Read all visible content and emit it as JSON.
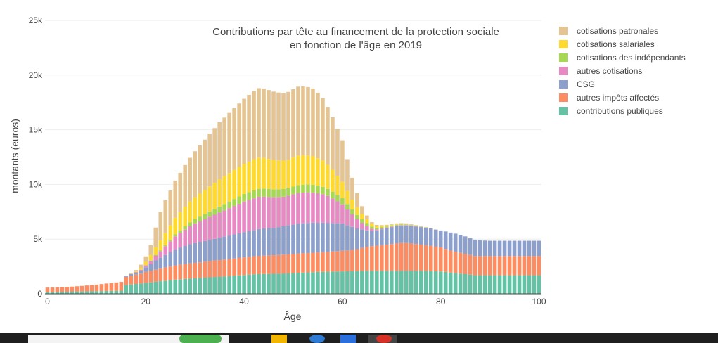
{
  "chart_data": {
    "type": "bar",
    "stacked": true,
    "title_lines": [
      "Contributions par tête au financement de la protection sociale",
      "en fonction de l'âge en 2019"
    ],
    "xlabel": "Âge",
    "ylabel": "montants (euros)",
    "xlim": [
      -0.5,
      100.5
    ],
    "ylim": [
      0,
      25000
    ],
    "x_ticks": [
      0,
      20,
      40,
      60,
      80,
      100
    ],
    "y_ticks": [
      0,
      5000,
      10000,
      15000,
      20000,
      25000
    ],
    "y_tick_labels": [
      "0",
      "5k",
      "10k",
      "15k",
      "20k",
      "25k"
    ],
    "grid": true,
    "legend_position": "top-right",
    "ages": [
      0,
      1,
      2,
      3,
      4,
      5,
      6,
      7,
      8,
      9,
      10,
      11,
      12,
      13,
      14,
      15,
      16,
      17,
      18,
      19,
      20,
      21,
      22,
      23,
      24,
      25,
      26,
      27,
      28,
      29,
      30,
      31,
      32,
      33,
      34,
      35,
      36,
      37,
      38,
      39,
      40,
      41,
      42,
      43,
      44,
      45,
      46,
      47,
      48,
      49,
      50,
      51,
      52,
      53,
      54,
      55,
      56,
      57,
      58,
      59,
      60,
      61,
      62,
      63,
      64,
      65,
      66,
      67,
      68,
      69,
      70,
      71,
      72,
      73,
      74,
      75,
      76,
      77,
      78,
      79,
      80,
      81,
      82,
      83,
      84,
      85,
      86,
      87,
      88,
      89,
      90,
      91,
      92,
      93,
      94,
      95,
      96,
      97,
      98,
      99,
      100
    ],
    "series": [
      {
        "name": "contributions publiques",
        "color": "#66c2a5",
        "values": [
          150,
          150,
          160,
          170,
          180,
          190,
          200,
          210,
          220,
          230,
          240,
          250,
          260,
          270,
          280,
          290,
          800,
          850,
          900,
          950,
          1000,
          1050,
          1100,
          1150,
          1200,
          1250,
          1300,
          1330,
          1360,
          1390,
          1420,
          1450,
          1480,
          1510,
          1540,
          1570,
          1600,
          1630,
          1660,
          1690,
          1720,
          1750,
          1780,
          1800,
          1810,
          1820,
          1830,
          1840,
          1860,
          1880,
          1900,
          1920,
          1940,
          1960,
          1980,
          2000,
          2010,
          2020,
          2030,
          2040,
          2050,
          2060,
          2070,
          2080,
          2090,
          2100,
          2100,
          2100,
          2100,
          2100,
          2100,
          2100,
          2100,
          2100,
          2100,
          2100,
          2100,
          2090,
          2080,
          2060,
          2040,
          2000,
          1950,
          1900,
          1850,
          1800,
          1750,
          1700,
          1700,
          1700,
          1700,
          1700,
          1700,
          1700,
          1700,
          1700,
          1700,
          1700,
          1700,
          1700,
          1700
        ]
      },
      {
        "name": "autres impôts affectés",
        "color": "#fc8d62",
        "values": [
          420,
          430,
          440,
          450,
          460,
          470,
          490,
          510,
          540,
          570,
          600,
          640,
          680,
          720,
          760,
          800,
          750,
          800,
          850,
          900,
          1000,
          1050,
          1100,
          1150,
          1200,
          1250,
          1300,
          1330,
          1360,
          1390,
          1410,
          1430,
          1450,
          1470,
          1490,
          1510,
          1530,
          1550,
          1570,
          1590,
          1610,
          1630,
          1650,
          1670,
          1680,
          1690,
          1700,
          1710,
          1720,
          1730,
          1740,
          1750,
          1760,
          1770,
          1780,
          1790,
          1800,
          1820,
          1840,
          1860,
          1880,
          1900,
          1950,
          2000,
          2100,
          2200,
          2250,
          2300,
          2350,
          2400,
          2450,
          2500,
          2550,
          2550,
          2500,
          2450,
          2400,
          2350,
          2300,
          2250,
          2200,
          2100,
          2000,
          1950,
          1900,
          1850,
          1800,
          1750,
          1750,
          1750,
          1750,
          1750,
          1750,
          1750,
          1750,
          1750,
          1750,
          1750,
          1750,
          1750,
          1750
        ]
      },
      {
        "name": "CSG",
        "color": "#8da0cb",
        "values": [
          0,
          0,
          0,
          0,
          0,
          0,
          0,
          0,
          0,
          0,
          0,
          0,
          0,
          0,
          0,
          0,
          100,
          150,
          200,
          250,
          400,
          600,
          850,
          1000,
          1150,
          1300,
          1450,
          1550,
          1650,
          1750,
          1800,
          1850,
          1900,
          1950,
          2000,
          2050,
          2100,
          2150,
          2200,
          2250,
          2300,
          2350,
          2400,
          2450,
          2500,
          2500,
          2500,
          2550,
          2600,
          2650,
          2700,
          2750,
          2750,
          2750,
          2750,
          2700,
          2700,
          2650,
          2600,
          2550,
          2500,
          2300,
          2100,
          1900,
          1700,
          1500,
          1400,
          1400,
          1450,
          1500,
          1550,
          1600,
          1600,
          1600,
          1600,
          1600,
          1600,
          1600,
          1600,
          1550,
          1550,
          1600,
          1650,
          1650,
          1650,
          1600,
          1550,
          1500,
          1450,
          1420,
          1400,
          1400,
          1400,
          1400,
          1400,
          1400,
          1400,
          1400,
          1400,
          1400,
          1400
        ]
      },
      {
        "name": "autres cotisations",
        "color": "#e78ac3",
        "values": [
          0,
          0,
          0,
          0,
          0,
          0,
          0,
          0,
          0,
          0,
          0,
          0,
          0,
          0,
          0,
          0,
          0,
          0,
          50,
          100,
          200,
          300,
          450,
          600,
          800,
          1000,
          1200,
          1350,
          1500,
          1650,
          1800,
          1900,
          2000,
          2100,
          2200,
          2300,
          2400,
          2500,
          2600,
          2700,
          2800,
          2850,
          2900,
          2950,
          2900,
          2850,
          2800,
          2750,
          2700,
          2700,
          2750,
          2800,
          2800,
          2800,
          2750,
          2700,
          2600,
          2450,
          2250,
          2000,
          1750,
          1450,
          1150,
          850,
          600,
          400,
          200,
          100,
          80,
          60,
          50,
          40,
          30,
          30,
          30,
          30,
          20,
          20,
          10,
          10,
          0,
          0,
          0,
          0,
          0,
          0,
          0,
          0,
          0,
          0,
          0,
          0,
          0,
          0,
          0,
          0,
          0,
          0,
          0,
          0,
          0
        ]
      },
      {
        "name": "cotisations des indépendants",
        "color": "#a6d854",
        "values": [
          0,
          0,
          0,
          0,
          0,
          0,
          0,
          0,
          0,
          0,
          0,
          0,
          0,
          0,
          0,
          0,
          0,
          0,
          0,
          10,
          20,
          40,
          60,
          80,
          100,
          150,
          200,
          250,
          300,
          350,
          400,
          430,
          460,
          490,
          520,
          550,
          580,
          610,
          640,
          670,
          700,
          710,
          720,
          730,
          730,
          720,
          710,
          700,
          700,
          700,
          710,
          720,
          720,
          720,
          710,
          700,
          680,
          650,
          620,
          590,
          560,
          500,
          440,
          380,
          320,
          260,
          200,
          150,
          120,
          100,
          90,
          80,
          70,
          60,
          50,
          40,
          30,
          20,
          10,
          10,
          0,
          0,
          0,
          0,
          0,
          0,
          0,
          0,
          0,
          0,
          0,
          0,
          0,
          0,
          0,
          0,
          0,
          0,
          0,
          0,
          0
        ]
      },
      {
        "name": "cotisations salariales",
        "color": "#ffd92f",
        "values": [
          0,
          0,
          0,
          0,
          0,
          0,
          0,
          0,
          0,
          0,
          0,
          0,
          0,
          0,
          0,
          0,
          0,
          30,
          80,
          150,
          300,
          500,
          700,
          900,
          1100,
          1300,
          1500,
          1650,
          1800,
          1900,
          2000,
          2100,
          2200,
          2300,
          2400,
          2500,
          2550,
          2600,
          2650,
          2700,
          2750,
          2800,
          2850,
          2850,
          2800,
          2750,
          2700,
          2650,
          2600,
          2600,
          2650,
          2700,
          2700,
          2650,
          2600,
          2500,
          2400,
          2200,
          2000,
          1750,
          1500,
          1200,
          900,
          700,
          500,
          350,
          250,
          150,
          100,
          80,
          70,
          60,
          50,
          40,
          30,
          20,
          10,
          0,
          0,
          0,
          0,
          0,
          0,
          0,
          0,
          0,
          0,
          0,
          0,
          0,
          0,
          0,
          0,
          0,
          0,
          0,
          0,
          0,
          0,
          0,
          0
        ]
      },
      {
        "name": "cotisations patronales",
        "color": "#e5c494",
        "values": [
          0,
          0,
          0,
          0,
          0,
          0,
          0,
          0,
          0,
          0,
          0,
          0,
          0,
          0,
          0,
          0,
          0,
          30,
          100,
          300,
          500,
          900,
          1800,
          2600,
          3000,
          3200,
          3400,
          3600,
          3800,
          4000,
          4200,
          4400,
          4600,
          4800,
          5000,
          5200,
          5350,
          5500,
          5650,
          5800,
          5950,
          6100,
          6250,
          6350,
          6350,
          6300,
          6250,
          6200,
          6150,
          6200,
          6250,
          6300,
          6300,
          6250,
          6200,
          6000,
          5700,
          5300,
          4800,
          4300,
          3800,
          2900,
          2000,
          1300,
          700,
          350,
          150,
          100,
          80,
          70,
          60,
          60,
          60,
          60,
          50,
          40,
          30,
          20,
          10,
          10,
          0,
          0,
          0,
          0,
          0,
          0,
          0,
          0,
          0,
          0,
          0,
          0,
          0,
          0,
          0,
          0,
          0,
          0,
          0,
          0,
          0
        ]
      }
    ]
  }
}
